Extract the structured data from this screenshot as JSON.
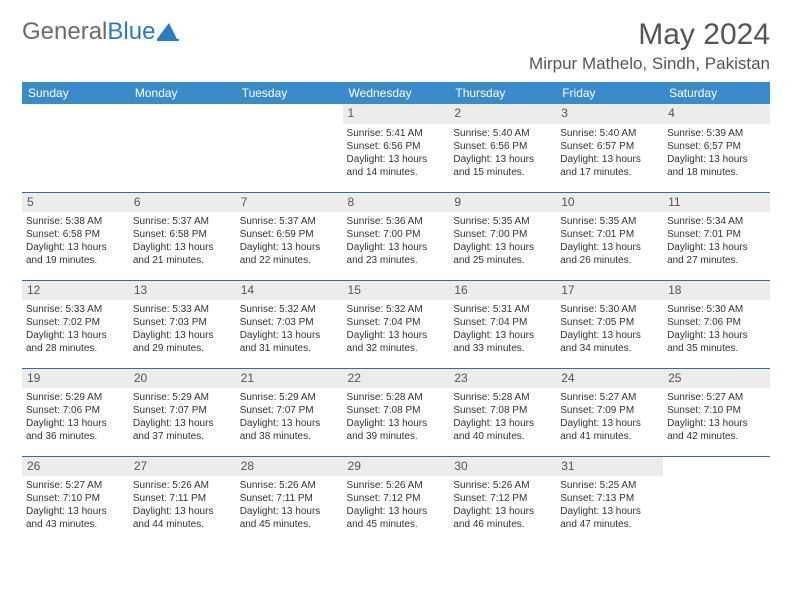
{
  "brand": {
    "part1": "General",
    "part2": "Blue"
  },
  "title": "May 2024",
  "location": "Mirpur Mathelo, Sindh, Pakistan",
  "colors": {
    "header_bg": "#3a8bc9",
    "daynum_bg": "#ececec",
    "row_border": "#2f6fa6",
    "brand_blue": "#2a7bbf"
  },
  "weekdays": [
    "Sunday",
    "Monday",
    "Tuesday",
    "Wednesday",
    "Thursday",
    "Friday",
    "Saturday"
  ],
  "weeks": [
    [
      null,
      null,
      null,
      {
        "n": "1",
        "sr": "Sunrise: 5:41 AM",
        "ss": "Sunset: 6:56 PM",
        "dl": "Daylight: 13 hours and 14 minutes."
      },
      {
        "n": "2",
        "sr": "Sunrise: 5:40 AM",
        "ss": "Sunset: 6:56 PM",
        "dl": "Daylight: 13 hours and 15 minutes."
      },
      {
        "n": "3",
        "sr": "Sunrise: 5:40 AM",
        "ss": "Sunset: 6:57 PM",
        "dl": "Daylight: 13 hours and 17 minutes."
      },
      {
        "n": "4",
        "sr": "Sunrise: 5:39 AM",
        "ss": "Sunset: 6:57 PM",
        "dl": "Daylight: 13 hours and 18 minutes."
      }
    ],
    [
      {
        "n": "5",
        "sr": "Sunrise: 5:38 AM",
        "ss": "Sunset: 6:58 PM",
        "dl": "Daylight: 13 hours and 19 minutes."
      },
      {
        "n": "6",
        "sr": "Sunrise: 5:37 AM",
        "ss": "Sunset: 6:58 PM",
        "dl": "Daylight: 13 hours and 21 minutes."
      },
      {
        "n": "7",
        "sr": "Sunrise: 5:37 AM",
        "ss": "Sunset: 6:59 PM",
        "dl": "Daylight: 13 hours and 22 minutes."
      },
      {
        "n": "8",
        "sr": "Sunrise: 5:36 AM",
        "ss": "Sunset: 7:00 PM",
        "dl": "Daylight: 13 hours and 23 minutes."
      },
      {
        "n": "9",
        "sr": "Sunrise: 5:35 AM",
        "ss": "Sunset: 7:00 PM",
        "dl": "Daylight: 13 hours and 25 minutes."
      },
      {
        "n": "10",
        "sr": "Sunrise: 5:35 AM",
        "ss": "Sunset: 7:01 PM",
        "dl": "Daylight: 13 hours and 26 minutes."
      },
      {
        "n": "11",
        "sr": "Sunrise: 5:34 AM",
        "ss": "Sunset: 7:01 PM",
        "dl": "Daylight: 13 hours and 27 minutes."
      }
    ],
    [
      {
        "n": "12",
        "sr": "Sunrise: 5:33 AM",
        "ss": "Sunset: 7:02 PM",
        "dl": "Daylight: 13 hours and 28 minutes."
      },
      {
        "n": "13",
        "sr": "Sunrise: 5:33 AM",
        "ss": "Sunset: 7:03 PM",
        "dl": "Daylight: 13 hours and 29 minutes."
      },
      {
        "n": "14",
        "sr": "Sunrise: 5:32 AM",
        "ss": "Sunset: 7:03 PM",
        "dl": "Daylight: 13 hours and 31 minutes."
      },
      {
        "n": "15",
        "sr": "Sunrise: 5:32 AM",
        "ss": "Sunset: 7:04 PM",
        "dl": "Daylight: 13 hours and 32 minutes."
      },
      {
        "n": "16",
        "sr": "Sunrise: 5:31 AM",
        "ss": "Sunset: 7:04 PM",
        "dl": "Daylight: 13 hours and 33 minutes."
      },
      {
        "n": "17",
        "sr": "Sunrise: 5:30 AM",
        "ss": "Sunset: 7:05 PM",
        "dl": "Daylight: 13 hours and 34 minutes."
      },
      {
        "n": "18",
        "sr": "Sunrise: 5:30 AM",
        "ss": "Sunset: 7:06 PM",
        "dl": "Daylight: 13 hours and 35 minutes."
      }
    ],
    [
      {
        "n": "19",
        "sr": "Sunrise: 5:29 AM",
        "ss": "Sunset: 7:06 PM",
        "dl": "Daylight: 13 hours and 36 minutes."
      },
      {
        "n": "20",
        "sr": "Sunrise: 5:29 AM",
        "ss": "Sunset: 7:07 PM",
        "dl": "Daylight: 13 hours and 37 minutes."
      },
      {
        "n": "21",
        "sr": "Sunrise: 5:29 AM",
        "ss": "Sunset: 7:07 PM",
        "dl": "Daylight: 13 hours and 38 minutes."
      },
      {
        "n": "22",
        "sr": "Sunrise: 5:28 AM",
        "ss": "Sunset: 7:08 PM",
        "dl": "Daylight: 13 hours and 39 minutes."
      },
      {
        "n": "23",
        "sr": "Sunrise: 5:28 AM",
        "ss": "Sunset: 7:08 PM",
        "dl": "Daylight: 13 hours and 40 minutes."
      },
      {
        "n": "24",
        "sr": "Sunrise: 5:27 AM",
        "ss": "Sunset: 7:09 PM",
        "dl": "Daylight: 13 hours and 41 minutes."
      },
      {
        "n": "25",
        "sr": "Sunrise: 5:27 AM",
        "ss": "Sunset: 7:10 PM",
        "dl": "Daylight: 13 hours and 42 minutes."
      }
    ],
    [
      {
        "n": "26",
        "sr": "Sunrise: 5:27 AM",
        "ss": "Sunset: 7:10 PM",
        "dl": "Daylight: 13 hours and 43 minutes."
      },
      {
        "n": "27",
        "sr": "Sunrise: 5:26 AM",
        "ss": "Sunset: 7:11 PM",
        "dl": "Daylight: 13 hours and 44 minutes."
      },
      {
        "n": "28",
        "sr": "Sunrise: 5:26 AM",
        "ss": "Sunset: 7:11 PM",
        "dl": "Daylight: 13 hours and 45 minutes."
      },
      {
        "n": "29",
        "sr": "Sunrise: 5:26 AM",
        "ss": "Sunset: 7:12 PM",
        "dl": "Daylight: 13 hours and 45 minutes."
      },
      {
        "n": "30",
        "sr": "Sunrise: 5:26 AM",
        "ss": "Sunset: 7:12 PM",
        "dl": "Daylight: 13 hours and 46 minutes."
      },
      {
        "n": "31",
        "sr": "Sunrise: 5:25 AM",
        "ss": "Sunset: 7:13 PM",
        "dl": "Daylight: 13 hours and 47 minutes."
      },
      null
    ]
  ]
}
